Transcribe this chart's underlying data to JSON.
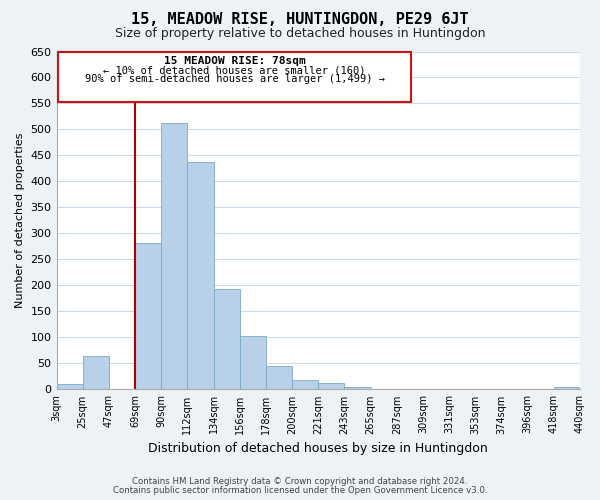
{
  "title": "15, MEADOW RISE, HUNTINGDON, PE29 6JT",
  "subtitle": "Size of property relative to detached houses in Huntingdon",
  "xlabel": "Distribution of detached houses by size in Huntingdon",
  "ylabel": "Number of detached properties",
  "bin_labels": [
    "3sqm",
    "25sqm",
    "47sqm",
    "69sqm",
    "90sqm",
    "112sqm",
    "134sqm",
    "156sqm",
    "178sqm",
    "200sqm",
    "221sqm",
    "243sqm",
    "265sqm",
    "287sqm",
    "309sqm",
    "331sqm",
    "353sqm",
    "374sqm",
    "396sqm",
    "418sqm",
    "440sqm"
  ],
  "bar_values": [
    10,
    65,
    0,
    282,
    513,
    437,
    194,
    102,
    46,
    19,
    12,
    4,
    0,
    0,
    0,
    0,
    0,
    0,
    0,
    4
  ],
  "bar_color": "#b8d0e8",
  "bar_edge_color": "#7aaac8",
  "ylim": [
    0,
    650
  ],
  "yticks": [
    0,
    50,
    100,
    150,
    200,
    250,
    300,
    350,
    400,
    450,
    500,
    550,
    600,
    650
  ],
  "vline_x_bin": 3,
  "vline_color": "#aa0000",
  "annotation_title": "15 MEADOW RISE: 78sqm",
  "annotation_line1": "← 10% of detached houses are smaller (160)",
  "annotation_line2": "90% of semi-detached houses are larger (1,499) →",
  "footnote1": "Contains HM Land Registry data © Crown copyright and database right 2024.",
  "footnote2": "Contains public sector information licensed under the Open Government Licence v3.0.",
  "bg_color": "#edf2f7",
  "plot_bg_color": "#ffffff",
  "grid_color": "#c8d8e8"
}
